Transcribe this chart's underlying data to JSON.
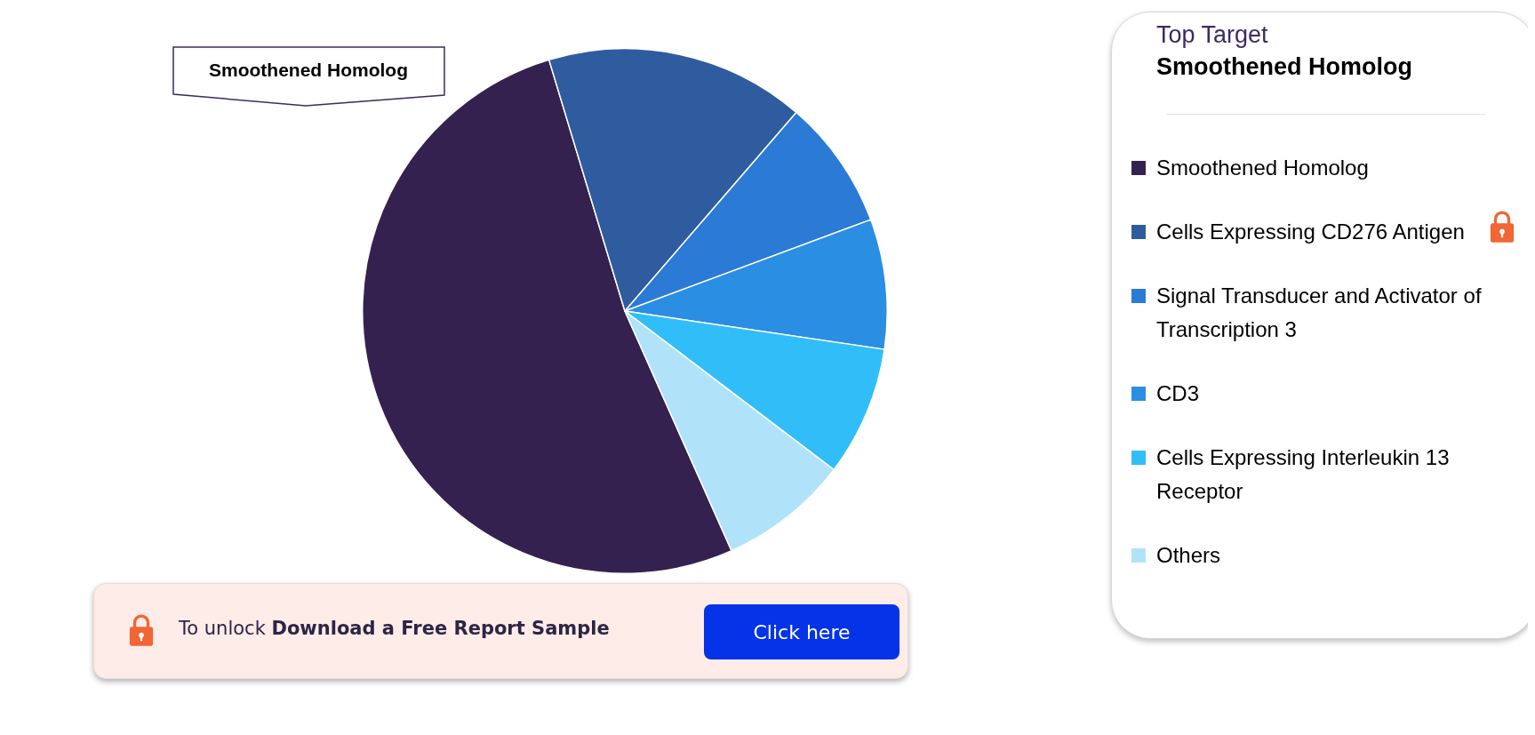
{
  "chart_data": {
    "type": "pie",
    "legend_title": "Top Target",
    "legend": "right",
    "categories": [
      "Smoothened Homolog",
      "Cells Expressing CD276 Antigen",
      "Signal Transducer and Activator of Transcription 3",
      "CD3",
      "Cells Expressing Interleukin 13 Receptor",
      "Others"
    ],
    "values": [
      52,
      16,
      8,
      8,
      8,
      8
    ],
    "colors": [
      "#352150",
      "#2e5c9f",
      "#2b7ad6",
      "#2a8ee2",
      "#31bef8",
      "#b0e3f9"
    ],
    "annotations": [
      "Smoothened Homolog",
      "Smoothened Homolog",
      "To unlock",
      "Download a Free Report Sample",
      "Click here"
    ]
  }
}
